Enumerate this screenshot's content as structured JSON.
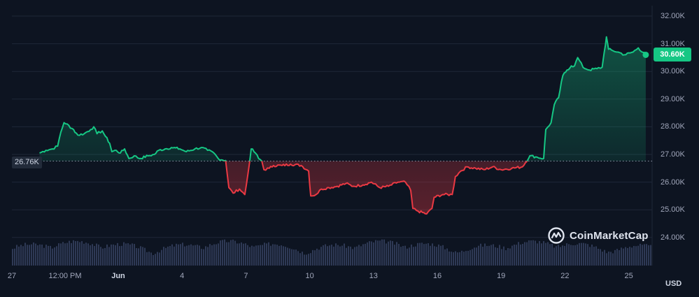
{
  "chart_data": {
    "type": "line",
    "currency": "USD",
    "brand": "CoinMarketCap",
    "reference_value": 26.76,
    "reference_label": "26.76K",
    "current_value": 30.6,
    "current_label": "30.60K",
    "ylim": [
      23.2,
      32.3
    ],
    "y_ticks": [
      {
        "value": 24,
        "label": "24.00K"
      },
      {
        "value": 25,
        "label": "25.00K"
      },
      {
        "value": 26,
        "label": "26.00K"
      },
      {
        "value": 27,
        "label": "27.00K"
      },
      {
        "value": 28,
        "label": "28.00K"
      },
      {
        "value": 29,
        "label": "29.00K"
      },
      {
        "value": 30,
        "label": "30.00K"
      },
      {
        "value": 31,
        "label": "31.00K"
      },
      {
        "value": 32,
        "label": "32.00K"
      }
    ],
    "xlim": [
      0,
      29.8
    ],
    "x_ticks": [
      {
        "t": 0,
        "label": "27",
        "bold": false
      },
      {
        "t": 2.5,
        "label": "12:00 PM",
        "bold": false
      },
      {
        "t": 5,
        "label": "Jun",
        "bold": true
      },
      {
        "t": 8,
        "label": "4",
        "bold": false
      },
      {
        "t": 11,
        "label": "7",
        "bold": false
      },
      {
        "t": 14,
        "label": "10",
        "bold": false
      },
      {
        "t": 17,
        "label": "13",
        "bold": false
      },
      {
        "t": 20,
        "label": "16",
        "bold": false
      },
      {
        "t": 23,
        "label": "19",
        "bold": false
      },
      {
        "t": 26,
        "label": "22",
        "bold": false
      },
      {
        "t": 29,
        "label": "25",
        "bold": false
      }
    ],
    "series": [
      {
        "values": [
          [
            1.3,
            27.05
          ],
          [
            1.6,
            27.15
          ],
          [
            1.9,
            27.2
          ],
          [
            2.15,
            27.3
          ],
          [
            2.3,
            27.8
          ],
          [
            2.45,
            28.15
          ],
          [
            2.6,
            28.1
          ],
          [
            2.75,
            27.95
          ],
          [
            2.9,
            27.9
          ],
          [
            3.1,
            27.7
          ],
          [
            3.4,
            27.75
          ],
          [
            3.7,
            27.9
          ],
          [
            3.85,
            28.0
          ],
          [
            4.0,
            27.75
          ],
          [
            4.25,
            27.85
          ],
          [
            4.4,
            27.65
          ],
          [
            4.6,
            27.4
          ],
          [
            4.7,
            27.1
          ],
          [
            4.9,
            27.15
          ],
          [
            5.1,
            27.05
          ],
          [
            5.3,
            27.2
          ],
          [
            5.5,
            26.85
          ],
          [
            5.75,
            26.95
          ],
          [
            6.0,
            26.85
          ],
          [
            6.4,
            26.95
          ],
          [
            6.7,
            27.0
          ],
          [
            6.9,
            27.15
          ],
          [
            7.2,
            27.2
          ],
          [
            7.5,
            27.25
          ],
          [
            7.9,
            27.2
          ],
          [
            8.2,
            27.1
          ],
          [
            8.6,
            27.2
          ],
          [
            8.9,
            27.25
          ],
          [
            9.2,
            27.15
          ],
          [
            9.5,
            27.05
          ],
          [
            9.7,
            26.85
          ],
          [
            10.05,
            26.78
          ],
          [
            10.2,
            25.8
          ],
          [
            10.4,
            25.6
          ],
          [
            10.7,
            25.75
          ],
          [
            10.95,
            25.55
          ],
          [
            11.1,
            26.3
          ],
          [
            11.25,
            27.2
          ],
          [
            11.45,
            27.05
          ],
          [
            11.6,
            26.85
          ],
          [
            11.75,
            26.76
          ],
          [
            11.85,
            26.45
          ],
          [
            12.1,
            26.5
          ],
          [
            12.3,
            26.6
          ],
          [
            12.7,
            26.6
          ],
          [
            13.1,
            26.65
          ],
          [
            13.6,
            26.6
          ],
          [
            13.95,
            26.4
          ],
          [
            14.05,
            25.5
          ],
          [
            14.3,
            25.55
          ],
          [
            14.55,
            25.75
          ],
          [
            14.9,
            25.8
          ],
          [
            15.3,
            25.85
          ],
          [
            15.7,
            25.95
          ],
          [
            16.05,
            25.85
          ],
          [
            16.5,
            25.9
          ],
          [
            16.9,
            26.0
          ],
          [
            17.3,
            25.8
          ],
          [
            17.7,
            25.85
          ],
          [
            18.15,
            26.0
          ],
          [
            18.5,
            26.0
          ],
          [
            18.75,
            25.7
          ],
          [
            18.85,
            25.05
          ],
          [
            19.1,
            24.95
          ],
          [
            19.5,
            24.85
          ],
          [
            19.75,
            25.05
          ],
          [
            19.85,
            25.45
          ],
          [
            20.25,
            25.55
          ],
          [
            20.7,
            25.55
          ],
          [
            20.85,
            26.2
          ],
          [
            21.1,
            26.4
          ],
          [
            21.4,
            26.55
          ],
          [
            21.8,
            26.5
          ],
          [
            22.2,
            26.45
          ],
          [
            22.6,
            26.55
          ],
          [
            23.0,
            26.45
          ],
          [
            23.5,
            26.5
          ],
          [
            24.0,
            26.55
          ],
          [
            24.35,
            26.95
          ],
          [
            24.7,
            26.9
          ],
          [
            25.0,
            26.85
          ],
          [
            25.1,
            27.9
          ],
          [
            25.35,
            28.15
          ],
          [
            25.5,
            28.8
          ],
          [
            25.7,
            29.05
          ],
          [
            25.9,
            29.85
          ],
          [
            26.1,
            30.05
          ],
          [
            26.3,
            30.2
          ],
          [
            26.45,
            30.2
          ],
          [
            26.6,
            30.5
          ],
          [
            26.85,
            30.15
          ],
          [
            27.15,
            30.05
          ],
          [
            27.5,
            30.1
          ],
          [
            27.75,
            30.15
          ],
          [
            27.85,
            30.7
          ],
          [
            27.95,
            31.25
          ],
          [
            28.05,
            30.8
          ],
          [
            28.25,
            30.75
          ],
          [
            28.5,
            30.7
          ],
          [
            28.8,
            30.6
          ],
          [
            29.2,
            30.7
          ],
          [
            29.45,
            30.85
          ],
          [
            29.8,
            30.6
          ]
        ]
      }
    ]
  }
}
